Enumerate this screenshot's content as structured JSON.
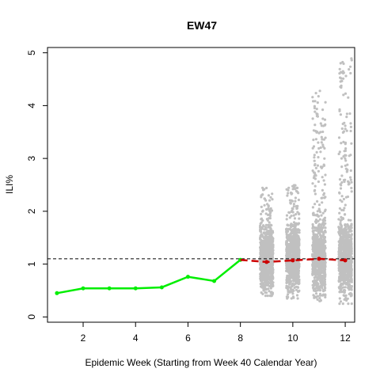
{
  "chart_data": {
    "type": "scatter",
    "title": "EW47",
    "xlabel": "Epidemic Week (Starting from Week 40 Calendar Year)",
    "ylabel": "ILI%",
    "xlim": [
      0.64,
      12.36
    ],
    "ylim": [
      -0.1,
      5.1
    ],
    "x_ticks": [
      2,
      4,
      6,
      8,
      10,
      12
    ],
    "y_ticks": [
      0,
      1,
      2,
      3,
      4,
      5
    ],
    "baseline": 1.1,
    "observed": {
      "color": "#00ee00",
      "x": [
        1,
        2,
        3,
        4,
        5,
        6,
        7,
        8
      ],
      "y": [
        0.45,
        0.54,
        0.54,
        0.54,
        0.56,
        0.76,
        0.68,
        1.08
      ]
    },
    "forecast_median": {
      "color": "#cc0000",
      "x": [
        8,
        9,
        10,
        11,
        12
      ],
      "y": [
        1.08,
        1.04,
        1.07,
        1.1,
        1.07
      ]
    },
    "forecast_samples": {
      "color": "#c0c0c0",
      "weeks": [
        9,
        10,
        11,
        12
      ],
      "min": [
        0.4,
        0.35,
        0.3,
        0.25
      ],
      "max": [
        2.45,
        2.5,
        4.3,
        4.9
      ],
      "center": [
        1.05,
        1.08,
        1.1,
        1.08
      ]
    },
    "grid": false,
    "legend": "none"
  }
}
